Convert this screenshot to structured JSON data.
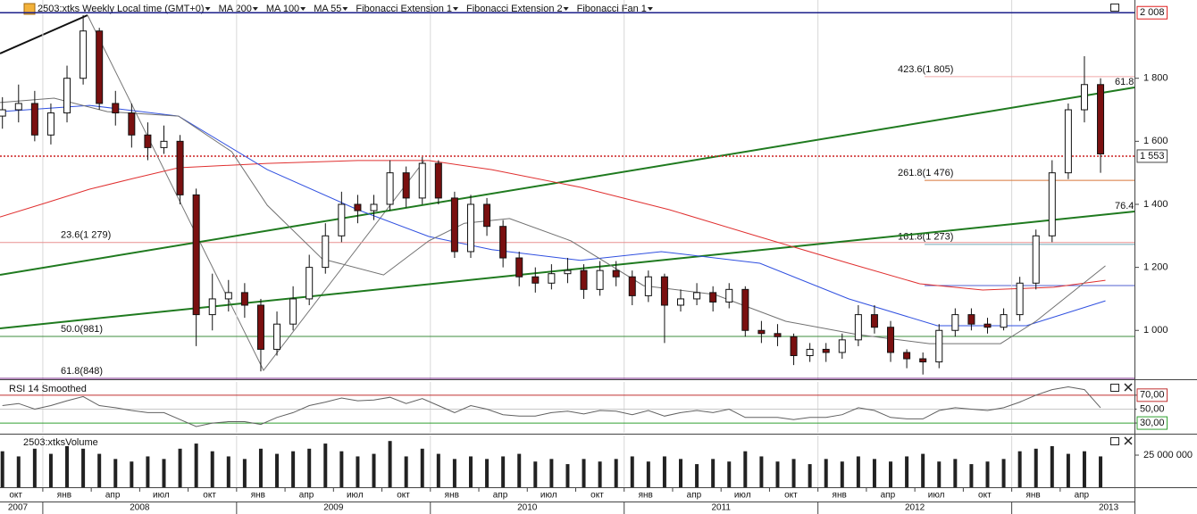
{
  "chart_data": [
    {
      "type": "candlestick",
      "title": "2503:xtks Weekly Local time (GMT+0)",
      "tools": [
        "Fibonacci Extension 1",
        "Fibonacci Extension 2",
        "Fibonacci Fan 1"
      ],
      "x": [
        9.5,
        10.5,
        11.5,
        12.5,
        13.5,
        14.5,
        15.5,
        16.5,
        17.5,
        18.5,
        19.5,
        20.5,
        21.5,
        22.5,
        23.5,
        24.5,
        25.5,
        26.5,
        27.5,
        28.5,
        29.5,
        30.5,
        31.5,
        32.5,
        33.5,
        34.5,
        35.5,
        36.5,
        37.5,
        38.5,
        39.5,
        40.5,
        41.5,
        42.5,
        43.5,
        44.5,
        45.5,
        46.5,
        47.5,
        48.5,
        49.5,
        50.5,
        51.5,
        52.5,
        53.5,
        54.5,
        55.5,
        56.5,
        57.5,
        58.5,
        59.5,
        60.5,
        61.5,
        62.5,
        63.5,
        64.5,
        65.5,
        66.5,
        67.5,
        68.5,
        69.5,
        70.5,
        71.5,
        72.5,
        73.5,
        74.5,
        75.5,
        76.5,
        77.5
      ],
      "open": [
        1680,
        1700,
        1720,
        1620,
        1690,
        1800,
        1950,
        1720,
        1690,
        1620,
        1580,
        1600,
        1430,
        1050,
        1100,
        1120,
        1080,
        940,
        1020,
        1100,
        1200,
        1300,
        1400,
        1380,
        1400,
        1500,
        1420,
        1530,
        1420,
        1250,
        1400,
        1330,
        1230,
        1170,
        1150,
        1180,
        1190,
        1130,
        1190,
        1170,
        1110,
        1170,
        1080,
        1100,
        1120,
        1090,
        1130,
        1000,
        990,
        980,
        920,
        940,
        930,
        970,
        1050,
        1010,
        930,
        910,
        900,
        1000,
        1050,
        1020,
        1010,
        1050,
        1150,
        1300,
        1500,
        1700,
        1780
      ],
      "high": [
        1740,
        1780,
        1760,
        1720,
        1840,
        2000,
        1960,
        1760,
        1720,
        1660,
        1650,
        1620,
        1450,
        1180,
        1160,
        1150,
        1100,
        1060,
        1140,
        1240,
        1340,
        1440,
        1430,
        1430,
        1540,
        1520,
        1550,
        1540,
        1440,
        1430,
        1420,
        1350,
        1250,
        1200,
        1210,
        1230,
        1210,
        1220,
        1220,
        1190,
        1190,
        1180,
        1130,
        1150,
        1140,
        1150,
        1140,
        1030,
        1020,
        990,
        960,
        960,
        990,
        1080,
        1080,
        1030,
        940,
        930,
        1020,
        1070,
        1070,
        1040,
        1070,
        1170,
        1320,
        1540,
        1720,
        1870,
        1800
      ],
      "low": [
        1640,
        1660,
        1600,
        1590,
        1660,
        1780,
        1700,
        1650,
        1580,
        1540,
        1560,
        1400,
        950,
        1000,
        1060,
        1040,
        870,
        920,
        1000,
        1080,
        1180,
        1280,
        1340,
        1350,
        1380,
        1390,
        1400,
        1400,
        1230,
        1230,
        1300,
        1200,
        1140,
        1120,
        1130,
        1150,
        1100,
        1110,
        1140,
        1080,
        1090,
        960,
        1060,
        1080,
        1060,
        1070,
        980,
        960,
        950,
        890,
        900,
        900,
        910,
        950,
        990,
        900,
        880,
        860,
        880,
        980,
        1000,
        990,
        1000,
        1030,
        1130,
        1280,
        1480,
        1660,
        1500
      ],
      "close": [
        1700,
        1720,
        1620,
        1690,
        1800,
        1950,
        1720,
        1690,
        1620,
        1580,
        1600,
        1430,
        1050,
        1100,
        1120,
        1080,
        940,
        1020,
        1100,
        1200,
        1300,
        1400,
        1380,
        1400,
        1500,
        1420,
        1530,
        1420,
        1250,
        1400,
        1330,
        1230,
        1170,
        1150,
        1180,
        1190,
        1130,
        1190,
        1170,
        1110,
        1170,
        1080,
        1100,
        1120,
        1090,
        1130,
        1000,
        990,
        980,
        920,
        940,
        930,
        970,
        1050,
        1010,
        930,
        910,
        900,
        1000,
        1050,
        1020,
        1010,
        1050,
        1150,
        1300,
        1500,
        1700,
        1780,
        1560
      ],
      "up_color": "#ffffff",
      "down_color": "#7a1010",
      "series": [
        {
          "name": "MA 200",
          "color": "#e03030",
          "x": [
            9.35,
            12.1,
            14.9,
            17.6,
            20.4,
            25.9,
            31.5,
            35.9,
            39.8,
            45.3,
            50.8,
            56.3,
            61.9,
            66.3,
            70.2,
            74.6,
            77.8
          ],
          "values": [
            1360,
            1403,
            1448,
            1482,
            1516,
            1530,
            1539,
            1539,
            1510,
            1454,
            1383,
            1298,
            1213,
            1148,
            1128,
            1137,
            1159
          ]
        },
        {
          "name": "MA 100",
          "color": "#3050e0",
          "x": [
            9.35,
            14.9,
            20.4,
            25.9,
            31.5,
            35.9,
            39.8,
            45.3,
            50.3,
            56.4,
            61.9,
            67.4,
            72.9,
            77.8
          ],
          "values": [
            1694,
            1714,
            1680,
            1510,
            1383,
            1298,
            1256,
            1222,
            1250,
            1213,
            1100,
            1015,
            1015,
            1094
          ]
        },
        {
          "name": "MA 55",
          "color": "#707070",
          "x": [
            9.35,
            12.7,
            16,
            20.4,
            23.7,
            25.9,
            29.3,
            33.1,
            35.9,
            38.1,
            40.9,
            44.7,
            49.2,
            53.6,
            58,
            62.4,
            66.9,
            71.3,
            73.5,
            77.8
          ],
          "values": [
            1723,
            1737,
            1694,
            1680,
            1567,
            1397,
            1227,
            1176,
            1284,
            1340,
            1355,
            1284,
            1142,
            1114,
            1029,
            987,
            958,
            958,
            1029,
            1205
          ]
        }
      ],
      "xlim": [
        9.35,
        79.6
      ],
      "xticks": [
        {
          "value": 9,
          "label": "окт"
        },
        {
          "value": 12,
          "label": "янв"
        },
        {
          "value": 15,
          "label": "апр"
        },
        {
          "value": 18,
          "label": "июл"
        },
        {
          "value": 21,
          "label": "окт"
        },
        {
          "value": 24,
          "label": "янв"
        },
        {
          "value": 27,
          "label": "апр"
        },
        {
          "value": 30,
          "label": "июл"
        },
        {
          "value": 33,
          "label": "окт"
        },
        {
          "value": 36,
          "label": "янв"
        },
        {
          "value": 39,
          "label": "апр"
        },
        {
          "value": 42,
          "label": "июл"
        },
        {
          "value": 45,
          "label": "окт"
        },
        {
          "value": 48,
          "label": "янв"
        },
        {
          "value": 51,
          "label": "апр"
        },
        {
          "value": 54,
          "label": "июл"
        },
        {
          "value": 57,
          "label": "окт"
        },
        {
          "value": 60,
          "label": "янв"
        },
        {
          "value": 63,
          "label": "апр"
        },
        {
          "value": 66,
          "label": "июл"
        },
        {
          "value": 69,
          "label": "окт"
        },
        {
          "value": 72,
          "label": "янв"
        },
        {
          "value": 75,
          "label": "апр"
        }
      ],
      "year_ticks": [
        2007,
        2008,
        2009,
        2010,
        2011,
        2012,
        2013
      ],
      "ylim": [
        845,
        2020
      ],
      "yticks": [
        {
          "value": 1000,
          "label": "1 000"
        },
        {
          "value": 1200,
          "label": "1 200"
        },
        {
          "value": 1400,
          "label": "1 400"
        },
        {
          "value": 1600,
          "label": "1 600"
        },
        {
          "value": 1800,
          "label": "1 800"
        }
      ],
      "price_markers": [
        {
          "value": 2008,
          "label": "2 008",
          "color": "#1b1f8a",
          "text_color": "#e02020"
        },
        {
          "value": 1553,
          "label": "1 553",
          "color": "#cc2020",
          "text_color": "#111111"
        }
      ],
      "fib_levels": [
        {
          "value": 1805,
          "label": "423.6(1 805)",
          "color": "#f0a8a8"
        },
        {
          "value": 1476,
          "label": "261.8(1 476)",
          "color": "#d8783a"
        },
        {
          "value": 1273,
          "label": "161.8(1 273)",
          "color": "#6fa8b8"
        },
        {
          "value": 1279,
          "label": "23.6(1 279)",
          "color": "#e89090"
        },
        {
          "value": 981,
          "label": "50.0(981)",
          "color": "#3e8e3e"
        },
        {
          "value": 848,
          "label": "61.8(848)",
          "color": "#7a2a8a"
        }
      ],
      "fan_levels": [
        61.8,
        76.4
      ],
      "fan_color": "#1f7a1f"
    },
    {
      "type": "line",
      "title": "RSI 14 Smoothed",
      "color": "#606060",
      "values": [
        55,
        58,
        50,
        55,
        62,
        68,
        55,
        52,
        48,
        45,
        45,
        35,
        25,
        30,
        32,
        32,
        28,
        38,
        45,
        55,
        60,
        66,
        62,
        63,
        67,
        58,
        65,
        55,
        45,
        55,
        50,
        42,
        40,
        40,
        45,
        47,
        43,
        48,
        47,
        42,
        48,
        40,
        45,
        48,
        45,
        50,
        38,
        38,
        38,
        35,
        38,
        38,
        42,
        52,
        48,
        38,
        36,
        36,
        48,
        52,
        50,
        48,
        52,
        60,
        70,
        78,
        82,
        78,
        52
      ],
      "ylim": [
        16,
        89
      ],
      "yticks": [
        {
          "value": 70,
          "label": "70,00"
        },
        {
          "value": 50,
          "label": "50,00"
        },
        {
          "value": 30,
          "label": "30,00"
        }
      ]
    },
    {
      "type": "bar",
      "title": "2503:xtksVolume",
      "color": "#222222",
      "values": [
        28000000,
        24000000,
        30000000,
        26000000,
        32000000,
        30000000,
        26000000,
        22000000,
        20000000,
        24000000,
        22000000,
        30000000,
        34000000,
        28000000,
        24000000,
        22000000,
        30000000,
        26000000,
        28000000,
        30000000,
        34000000,
        28000000,
        24000000,
        26000000,
        36000000,
        24000000,
        30000000,
        26000000,
        22000000,
        24000000,
        22000000,
        24000000,
        26000000,
        20000000,
        22000000,
        18000000,
        22000000,
        20000000,
        22000000,
        24000000,
        20000000,
        24000000,
        22000000,
        18000000,
        22000000,
        20000000,
        28000000,
        24000000,
        20000000,
        22000000,
        18000000,
        22000000,
        20000000,
        24000000,
        22000000,
        20000000,
        24000000,
        26000000,
        20000000,
        22000000,
        18000000,
        20000000,
        22000000,
        28000000,
        30000000,
        32000000,
        26000000,
        28000000,
        24000000
      ],
      "ylim": [
        0,
        40300000
      ],
      "yticks": [
        {
          "value": 25000000,
          "label": "25 000 000"
        }
      ]
    }
  ]
}
